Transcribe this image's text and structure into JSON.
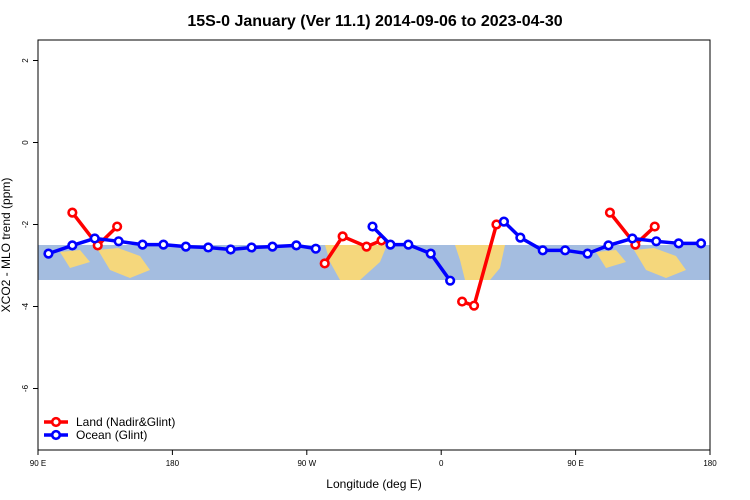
{
  "chart_data": {
    "type": "line",
    "title": "15S-0 January (Ver 11.1)   2014-09-06 to 2023-04-30",
    "x_label": "Longitude (deg E)",
    "y_label": "XCO2 - MLO trend (ppm)",
    "xlim": [
      90,
      540
    ],
    "ylim": [
      -7.5,
      2.5
    ],
    "xticks": [
      {
        "value": 90,
        "label": "90 E"
      },
      180,
      {
        "value": 270,
        "label": "90 W"
      },
      {
        "value": 360,
        "label": "0"
      },
      {
        "value": 450,
        "label": "90 E"
      },
      {
        "value": 540,
        "label": "180"
      }
    ],
    "yticks": [
      -6,
      -4,
      -2,
      0,
      2
    ],
    "legend": "bottom-left",
    "series": [
      {
        "name": "Land (Nadir&Glint)",
        "color": "#ff0000",
        "x": [
          113,
          130,
          143,
          null,
          282,
          294,
          310,
          320,
          null,
          374,
          382,
          397,
          null,
          473,
          490,
          503
        ],
        "values": [
          -1.71,
          -2.51,
          -2.05,
          null,
          -2.95,
          -2.29,
          -2.54,
          -2.39,
          null,
          -3.88,
          -3.98,
          -2.0,
          null,
          -1.71,
          -2.49,
          -2.05
        ]
      },
      {
        "name": "Ocean (Glint)",
        "color": "#0000ff",
        "x": [
          97,
          113,
          128,
          144,
          160,
          174,
          189,
          204,
          219,
          233,
          247,
          263,
          276,
          null,
          314,
          326,
          338,
          353,
          366,
          null,
          402,
          413,
          428,
          443,
          458,
          472,
          488,
          504,
          519,
          534
        ],
        "values": [
          -2.71,
          -2.51,
          -2.34,
          -2.41,
          -2.49,
          -2.49,
          -2.54,
          -2.56,
          -2.61,
          -2.56,
          -2.54,
          -2.51,
          -2.59,
          null,
          -2.05,
          -2.49,
          -2.49,
          -2.71,
          -3.37,
          null,
          -1.93,
          -2.32,
          -2.63,
          -2.63,
          -2.71,
          -2.51,
          -2.34,
          -2.41,
          -2.46,
          -2.46
        ]
      }
    ]
  }
}
